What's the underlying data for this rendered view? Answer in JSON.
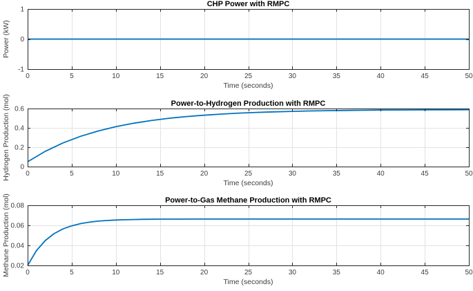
{
  "figure": {
    "background": "#ffffff",
    "line_color": "#0072BD",
    "axis_color": "#262626",
    "grid_color": "#e2e2e2",
    "label_color": "#3c3c3c",
    "title_color": "#000000"
  },
  "chart_data": [
    {
      "type": "line",
      "title": "CHP Power with RMPC",
      "xlabel": "Time (seconds)",
      "ylabel": "Power (kW)",
      "xlim": [
        0,
        50
      ],
      "ylim": [
        -1,
        1
      ],
      "xticks": [
        0,
        5,
        10,
        15,
        20,
        25,
        30,
        35,
        40,
        45,
        50
      ],
      "xtick_labels": [
        "0",
        "5",
        "10",
        "15",
        "20",
        "25",
        "30",
        "35",
        "40",
        "45",
        "50"
      ],
      "yticks": [
        -1,
        0,
        1
      ],
      "ytick_labels": [
        "-1",
        "0",
        "1"
      ],
      "grid": true,
      "legend_position": "none",
      "series": [
        {
          "name": "CHP Power",
          "x": [
            0,
            50
          ],
          "y": [
            0,
            0
          ]
        }
      ]
    },
    {
      "type": "line",
      "title": "Power-to-Hydrogen Production with RMPC",
      "xlabel": "Time (seconds)",
      "ylabel": "Hydrogen Production (mol)",
      "xlim": [
        0,
        50
      ],
      "ylim": [
        0,
        0.6
      ],
      "xticks": [
        0,
        5,
        10,
        15,
        20,
        25,
        30,
        35,
        40,
        45,
        50
      ],
      "xtick_labels": [
        "0",
        "5",
        "10",
        "15",
        "20",
        "25",
        "30",
        "35",
        "40",
        "45",
        "50"
      ],
      "yticks": [
        0,
        0.2,
        0.4,
        0.6
      ],
      "ytick_labels": [
        "0",
        "0.2",
        "0.4",
        "0.6"
      ],
      "grid": true,
      "legend_position": "none",
      "series": [
        {
          "name": "Hydrogen Production",
          "x": [
            0,
            2,
            4,
            6,
            8,
            10,
            12,
            14,
            16,
            18,
            20,
            22,
            24,
            26,
            28,
            30,
            32,
            34,
            36,
            38,
            40,
            42,
            44,
            46,
            48,
            50
          ],
          "y": [
            0.05,
            0.158,
            0.244,
            0.313,
            0.368,
            0.412,
            0.448,
            0.476,
            0.499,
            0.517,
            0.531,
            0.543,
            0.553,
            0.56,
            0.566,
            0.571,
            0.575,
            0.578,
            0.58,
            0.582,
            0.584,
            0.585,
            0.586,
            0.587,
            0.587,
            0.588
          ]
        }
      ]
    },
    {
      "type": "line",
      "title": "Power-to-Gas Methane Production with RMPC",
      "xlabel": "Time (seconds)",
      "ylabel": "Methane Production (mol)",
      "xlim": [
        0,
        50
      ],
      "ylim": [
        0.02,
        0.08
      ],
      "xticks": [
        0,
        5,
        10,
        15,
        20,
        25,
        30,
        35,
        40,
        45,
        50
      ],
      "xtick_labels": [
        "0",
        "5",
        "10",
        "15",
        "20",
        "25",
        "30",
        "35",
        "40",
        "45",
        "50"
      ],
      "yticks": [
        0.02,
        0.04,
        0.06,
        0.08
      ],
      "ytick_labels": [
        "0.02",
        "0.04",
        "0.06",
        "0.08"
      ],
      "grid": true,
      "legend_position": "none",
      "series": [
        {
          "name": "Methane Production",
          "x": [
            0,
            1,
            2,
            3,
            4,
            5,
            6,
            7,
            8,
            9,
            10,
            11,
            12,
            13,
            14,
            15,
            20,
            25,
            30,
            35,
            40,
            45,
            50
          ],
          "y": [
            0.02,
            0.0348,
            0.0448,
            0.0517,
            0.0564,
            0.0595,
            0.0617,
            0.0632,
            0.0642,
            0.0648,
            0.0653,
            0.0656,
            0.0658,
            0.066,
            0.0661,
            0.0662,
            0.0663,
            0.0663,
            0.0663,
            0.0663,
            0.0663,
            0.0663,
            0.0663
          ]
        }
      ]
    }
  ]
}
